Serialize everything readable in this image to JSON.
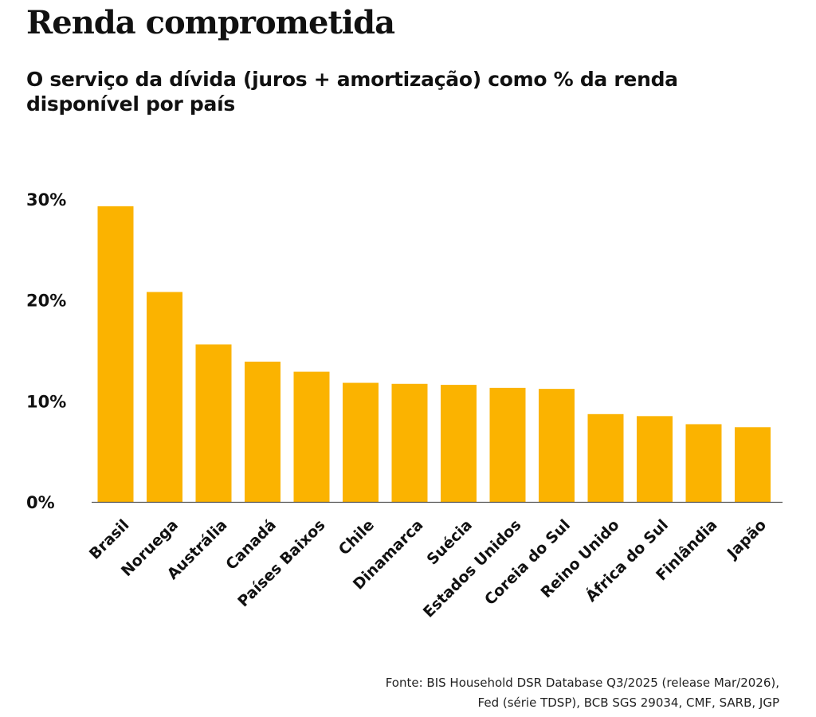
{
  "title": "Renda comprometida",
  "subtitle": "O serviço da dívida (juros + amortização) como % da renda disponível por país",
  "source": {
    "line1": "Fonte: BIS Household DSR Database Q3/2025 (release Mar/2026),",
    "line2": "Fed (série TDSP), BCB SGS 29034, CMF, SARB, JGP"
  },
  "colors": {
    "bar": "#FBB300",
    "axis": "#555555",
    "text": "#111111"
  },
  "chart_data": {
    "type": "bar",
    "title": "Renda comprometida",
    "subtitle": "O serviço da dívida (juros + amortização) como % da renda disponível por país",
    "categories": [
      "Brasil",
      "Noruega",
      "Austrália",
      "Canadá",
      "Países Baixos",
      "Chile",
      "Dinamarca",
      "Suécia",
      "Estados Unidos",
      "Coreia do Sul",
      "Reino Unido",
      "África do Sul",
      "Finlândia",
      "Japão"
    ],
    "values": [
      29.3,
      20.8,
      15.6,
      13.9,
      12.9,
      11.8,
      11.7,
      11.6,
      11.3,
      11.2,
      8.7,
      8.5,
      7.7,
      7.4
    ],
    "unit": "%",
    "ylim": [
      0,
      30
    ],
    "yticks": [
      0,
      10,
      20,
      30
    ],
    "ytick_labels": [
      "0%",
      "10%",
      "20%",
      "30%"
    ],
    "xlabel": "",
    "ylabel": "",
    "grid": false,
    "legend": "none"
  }
}
